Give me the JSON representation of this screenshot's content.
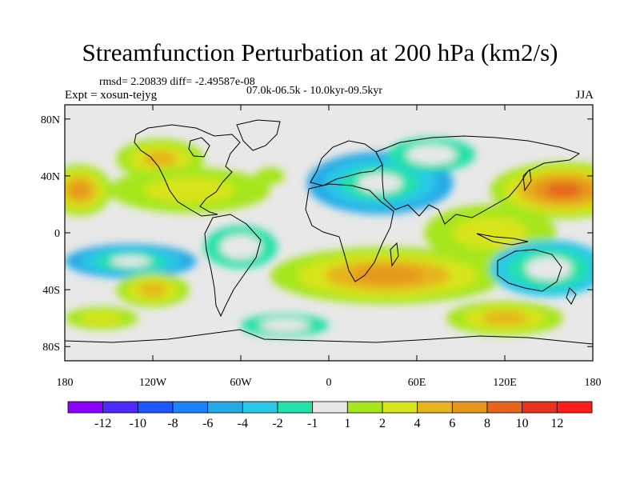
{
  "title": "Streamfunction Perturbation at 200 hPa (km2/s)",
  "stats": "rmsd= 2.20839 diff= -2.49587e-08",
  "experiment": "Expt = xosun-tejyg",
  "period": "07.0k-06.5k - 10.0kyr-09.5kyr",
  "season": "JJA",
  "map": {
    "projection": "cylindrical equidistant",
    "lat_range": [
      -90,
      90
    ],
    "lon_range": [
      -180,
      180
    ],
    "lat_ticks": [
      {
        "value": 80,
        "label": "80N"
      },
      {
        "value": 40,
        "label": "40N"
      },
      {
        "value": 0,
        "label": "0"
      },
      {
        "value": -40,
        "label": "40S"
      },
      {
        "value": -80,
        "label": "80S"
      }
    ],
    "lon_ticks": [
      {
        "value": -180,
        "label": "180"
      },
      {
        "value": -120,
        "label": "120W"
      },
      {
        "value": -60,
        "label": "60W"
      },
      {
        "value": 0,
        "label": "0"
      },
      {
        "value": 60,
        "label": "60E"
      },
      {
        "value": 120,
        "label": "120E"
      },
      {
        "value": 180,
        "label": "180"
      }
    ],
    "anomalies": [
      {
        "lon": -170,
        "lat": 30,
        "rx": 22,
        "ry": 18,
        "value": 6
      },
      {
        "lon": -115,
        "lat": 52,
        "rx": 30,
        "ry": 14,
        "value": 4
      },
      {
        "lon": -95,
        "lat": 30,
        "rx": 55,
        "ry": 16,
        "value": 2
      },
      {
        "lon": -40,
        "lat": 40,
        "rx": 10,
        "ry": 6,
        "value": 1
      },
      {
        "lon": -135,
        "lat": -20,
        "rx": 45,
        "ry": 12,
        "value": -6
      },
      {
        "lon": -120,
        "lat": -40,
        "rx": 25,
        "ry": 12,
        "value": 4
      },
      {
        "lon": -155,
        "lat": -60,
        "rx": 25,
        "ry": 8,
        "value": 2
      },
      {
        "lon": -60,
        "lat": -10,
        "rx": 25,
        "ry": 15,
        "value": -2
      },
      {
        "lon": 35,
        "lat": 35,
        "rx": 50,
        "ry": 22,
        "value": -6
      },
      {
        "lon": 70,
        "lat": 55,
        "rx": 30,
        "ry": 12,
        "value": -2
      },
      {
        "lon": 40,
        "lat": -30,
        "rx": 80,
        "ry": 20,
        "value": 6
      },
      {
        "lon": 110,
        "lat": 0,
        "rx": 45,
        "ry": 20,
        "value": 2
      },
      {
        "lon": 160,
        "lat": 30,
        "rx": 50,
        "ry": 20,
        "value": 8
      },
      {
        "lon": 150,
        "lat": -25,
        "rx": 40,
        "ry": 20,
        "value": -4
      },
      {
        "lon": 120,
        "lat": -60,
        "rx": 40,
        "ry": 12,
        "value": 4
      },
      {
        "lon": -30,
        "lat": -65,
        "rx": 30,
        "ry": 8,
        "value": -2
      }
    ]
  },
  "colorbar": {
    "colors": [
      "#8b00ff",
      "#4b2aff",
      "#1f56ff",
      "#1e82ff",
      "#26aae6",
      "#2bc8e6",
      "#24e1aa",
      "#e8e8e8",
      "#a6e61e",
      "#d8e41e",
      "#e6b41e",
      "#e6961e",
      "#e6641e",
      "#e6321e",
      "#ff1e1e"
    ],
    "labels": [
      "-12",
      "-10",
      "-8",
      "-6",
      "-4",
      "-2",
      "-1",
      "1",
      "2",
      "4",
      "6",
      "8",
      "10",
      "12"
    ]
  }
}
